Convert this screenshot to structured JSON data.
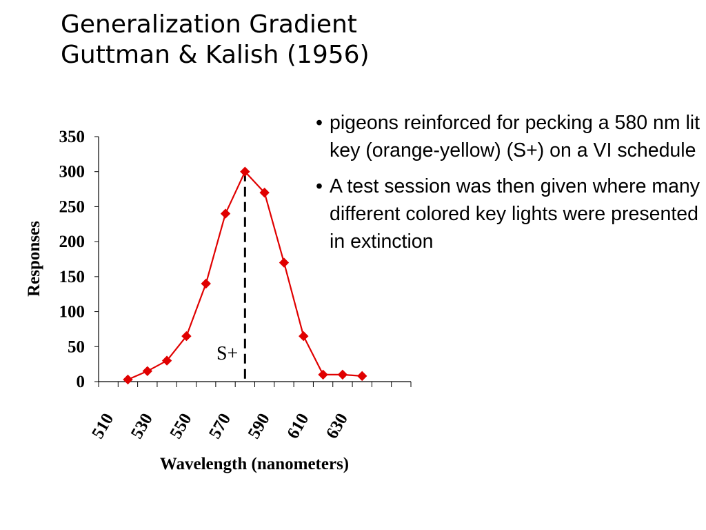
{
  "title": {
    "line1": "Generalization Gradient",
    "line2": "Guttman & Kalish (1956)"
  },
  "bullets": [
    {
      "text": "pigeons reinforced for pecking a 580 nm lit key (orange-yellow) (S+) on a VI schedule"
    },
    {
      "text": "A test session was then given where many different colored key lights were presented in extinction"
    }
  ],
  "chart_data": {
    "type": "line",
    "title": "",
    "xlabel": "Wavelength (nanometers)",
    "ylabel": "Responses",
    "xlim": [
      505,
      665
    ],
    "ylim": [
      0,
      350
    ],
    "yticks": [
      0,
      50,
      100,
      150,
      200,
      250,
      300,
      350
    ],
    "xticklabels": [
      "510",
      "530",
      "550",
      "570",
      "590",
      "610",
      "630"
    ],
    "series": [
      {
        "name": "Responses",
        "color": "#e00000",
        "x": [
          520,
          530,
          540,
          550,
          560,
          570,
          580,
          590,
          600,
          610,
          620,
          630,
          640
        ],
        "y": [
          3,
          15,
          30,
          65,
          140,
          240,
          300,
          270,
          170,
          65,
          10,
          10,
          8
        ]
      }
    ],
    "annotation": {
      "label": "S+",
      "x": 580
    }
  }
}
